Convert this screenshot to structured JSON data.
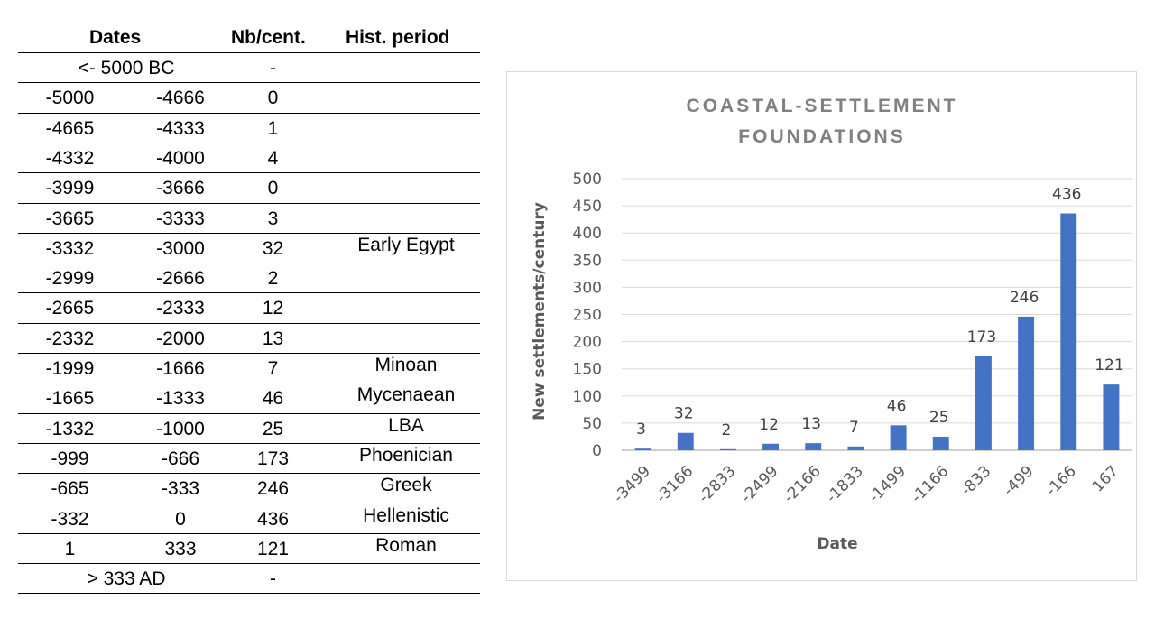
{
  "table": {
    "headers": {
      "dates": "Dates",
      "nb": "Nb/cent.",
      "period": "Hist. period"
    },
    "rows": [
      {
        "span": "<- 5000 BC",
        "nb": "-",
        "period": ""
      },
      {
        "from": "-5000",
        "to": "-4666",
        "nb": "0",
        "period": ""
      },
      {
        "from": "-4665",
        "to": "-4333",
        "nb": "1",
        "period": ""
      },
      {
        "from": "-4332",
        "to": "-4000",
        "nb": "4",
        "period": ""
      },
      {
        "from": "-3999",
        "to": "-3666",
        "nb": "0",
        "period": ""
      },
      {
        "from": "-3665",
        "to": "-3333",
        "nb": "3",
        "period": ""
      },
      {
        "from": "-3332",
        "to": "-3000",
        "nb": "32",
        "period": "Early Egypt"
      },
      {
        "from": "-2999",
        "to": "-2666",
        "nb": "2",
        "period": ""
      },
      {
        "from": "-2665",
        "to": "-2333",
        "nb": "12",
        "period": ""
      },
      {
        "from": "-2332",
        "to": "-2000",
        "nb": "13",
        "period": ""
      },
      {
        "from": "-1999",
        "to": "-1666",
        "nb": "7",
        "period": "Minoan"
      },
      {
        "from": "-1665",
        "to": "-1333",
        "nb": "46",
        "period": "Mycenaean"
      },
      {
        "from": "-1332",
        "to": "-1000",
        "nb": "25",
        "period": "LBA"
      },
      {
        "from": "-999",
        "to": "-666",
        "nb": "173",
        "period": "Phoenician"
      },
      {
        "from": "-665",
        "to": "-333",
        "nb": "246",
        "period": "Greek"
      },
      {
        "from": "-332",
        "to": "0",
        "nb": "436",
        "period": "Hellenistic"
      },
      {
        "from": "1",
        "to": "333",
        "nb": "121",
        "period": "Roman"
      },
      {
        "span": "> 333 AD",
        "nb": "-",
        "period": ""
      }
    ]
  },
  "chart_data": {
    "type": "bar",
    "title": "COASTAL-SETTLEMENT FOUNDATIONS",
    "title_lines": [
      "COASTAL-SETTLEMENT",
      "FOUNDATIONS"
    ],
    "xlabel": "Date",
    "ylabel": "New settlements/century",
    "categories": [
      "-3499",
      "-3166",
      "-2833",
      "-2499",
      "-2166",
      "-1833",
      "-1499",
      "-1166",
      "-833",
      "-499",
      "-166",
      "167"
    ],
    "values": [
      3,
      32,
      2,
      12,
      13,
      7,
      46,
      25,
      173,
      246,
      436,
      121
    ],
    "data_labels": [
      "3",
      "32",
      "2",
      "12",
      "13",
      "7",
      "46",
      "25",
      "173",
      "246",
      "436",
      "121"
    ],
    "yticks": [
      0,
      50,
      100,
      150,
      200,
      250,
      300,
      350,
      400,
      450,
      500
    ],
    "ylim": [
      0,
      500
    ],
    "grid": true,
    "legend": "none",
    "bar_color": "#4472c4",
    "grid_color": "#d9d9d9",
    "axis_color": "#bfbfbf"
  }
}
